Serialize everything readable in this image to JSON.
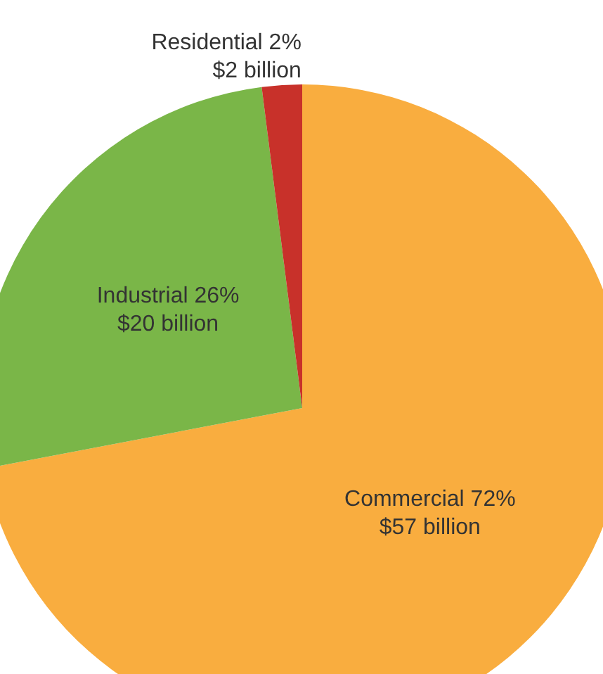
{
  "chart_data": {
    "type": "pie",
    "categories": [
      "Commercial",
      "Industrial",
      "Residential"
    ],
    "values": [
      72,
      26,
      2
    ],
    "value_labels": [
      "72%\n$57 billion",
      "26%\n$20 billion",
      "2%\n$2 billion"
    ],
    "colors": [
      "#f9ad3f",
      "#7ab648",
      "#c8312a"
    ],
    "legend": false
  }
}
